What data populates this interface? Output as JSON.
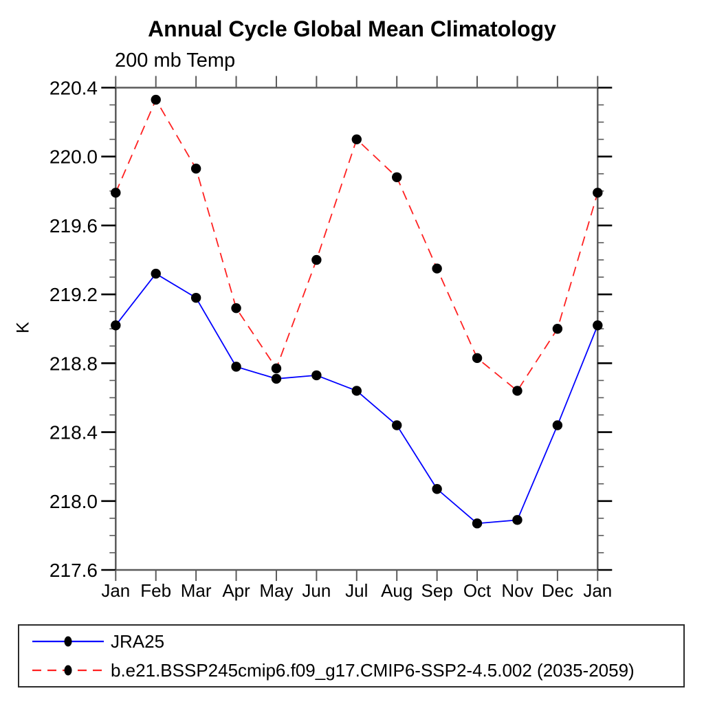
{
  "title": "Annual Cycle Global Mean Climatology",
  "subtitle": "200 mb Temp",
  "ylabel": "K",
  "chart_data": {
    "type": "line",
    "title": "Annual Cycle Global Mean Climatology",
    "subtitle": "200 mb Temp",
    "xlabel": "",
    "ylabel": "K",
    "categories": [
      "Jan",
      "Feb",
      "Mar",
      "Apr",
      "May",
      "Jun",
      "Jul",
      "Aug",
      "Sep",
      "Oct",
      "Nov",
      "Dec",
      "Jan"
    ],
    "ylim": [
      217.6,
      220.4
    ],
    "ytick_major": [
      217.6,
      218.0,
      218.4,
      218.8,
      219.2,
      219.6,
      220.0,
      220.4
    ],
    "ytick_minor_step": 0.1,
    "grid": false,
    "legend_position": "bottom",
    "frame_color": "#5a5a5a",
    "series": [
      {
        "name": "JRA25",
        "color": "#0000ff",
        "style": "solid",
        "marker": "circle",
        "marker_color": "#000000",
        "values": [
          219.02,
          219.32,
          219.18,
          218.78,
          218.71,
          218.73,
          218.64,
          218.44,
          218.07,
          217.87,
          217.89,
          218.44,
          219.02
        ]
      },
      {
        "name": "b.e21.BSSP245cmip6.f09_g17.CMIP6-SSP2-4.5.002 (2035-2059)",
        "color": "#ff2020",
        "style": "dashed",
        "marker": "circle",
        "marker_color": "#000000",
        "values": [
          219.79,
          220.33,
          219.93,
          219.12,
          218.77,
          219.4,
          220.1,
          219.88,
          219.35,
          218.83,
          218.64,
          219.0,
          219.79
        ]
      }
    ]
  }
}
